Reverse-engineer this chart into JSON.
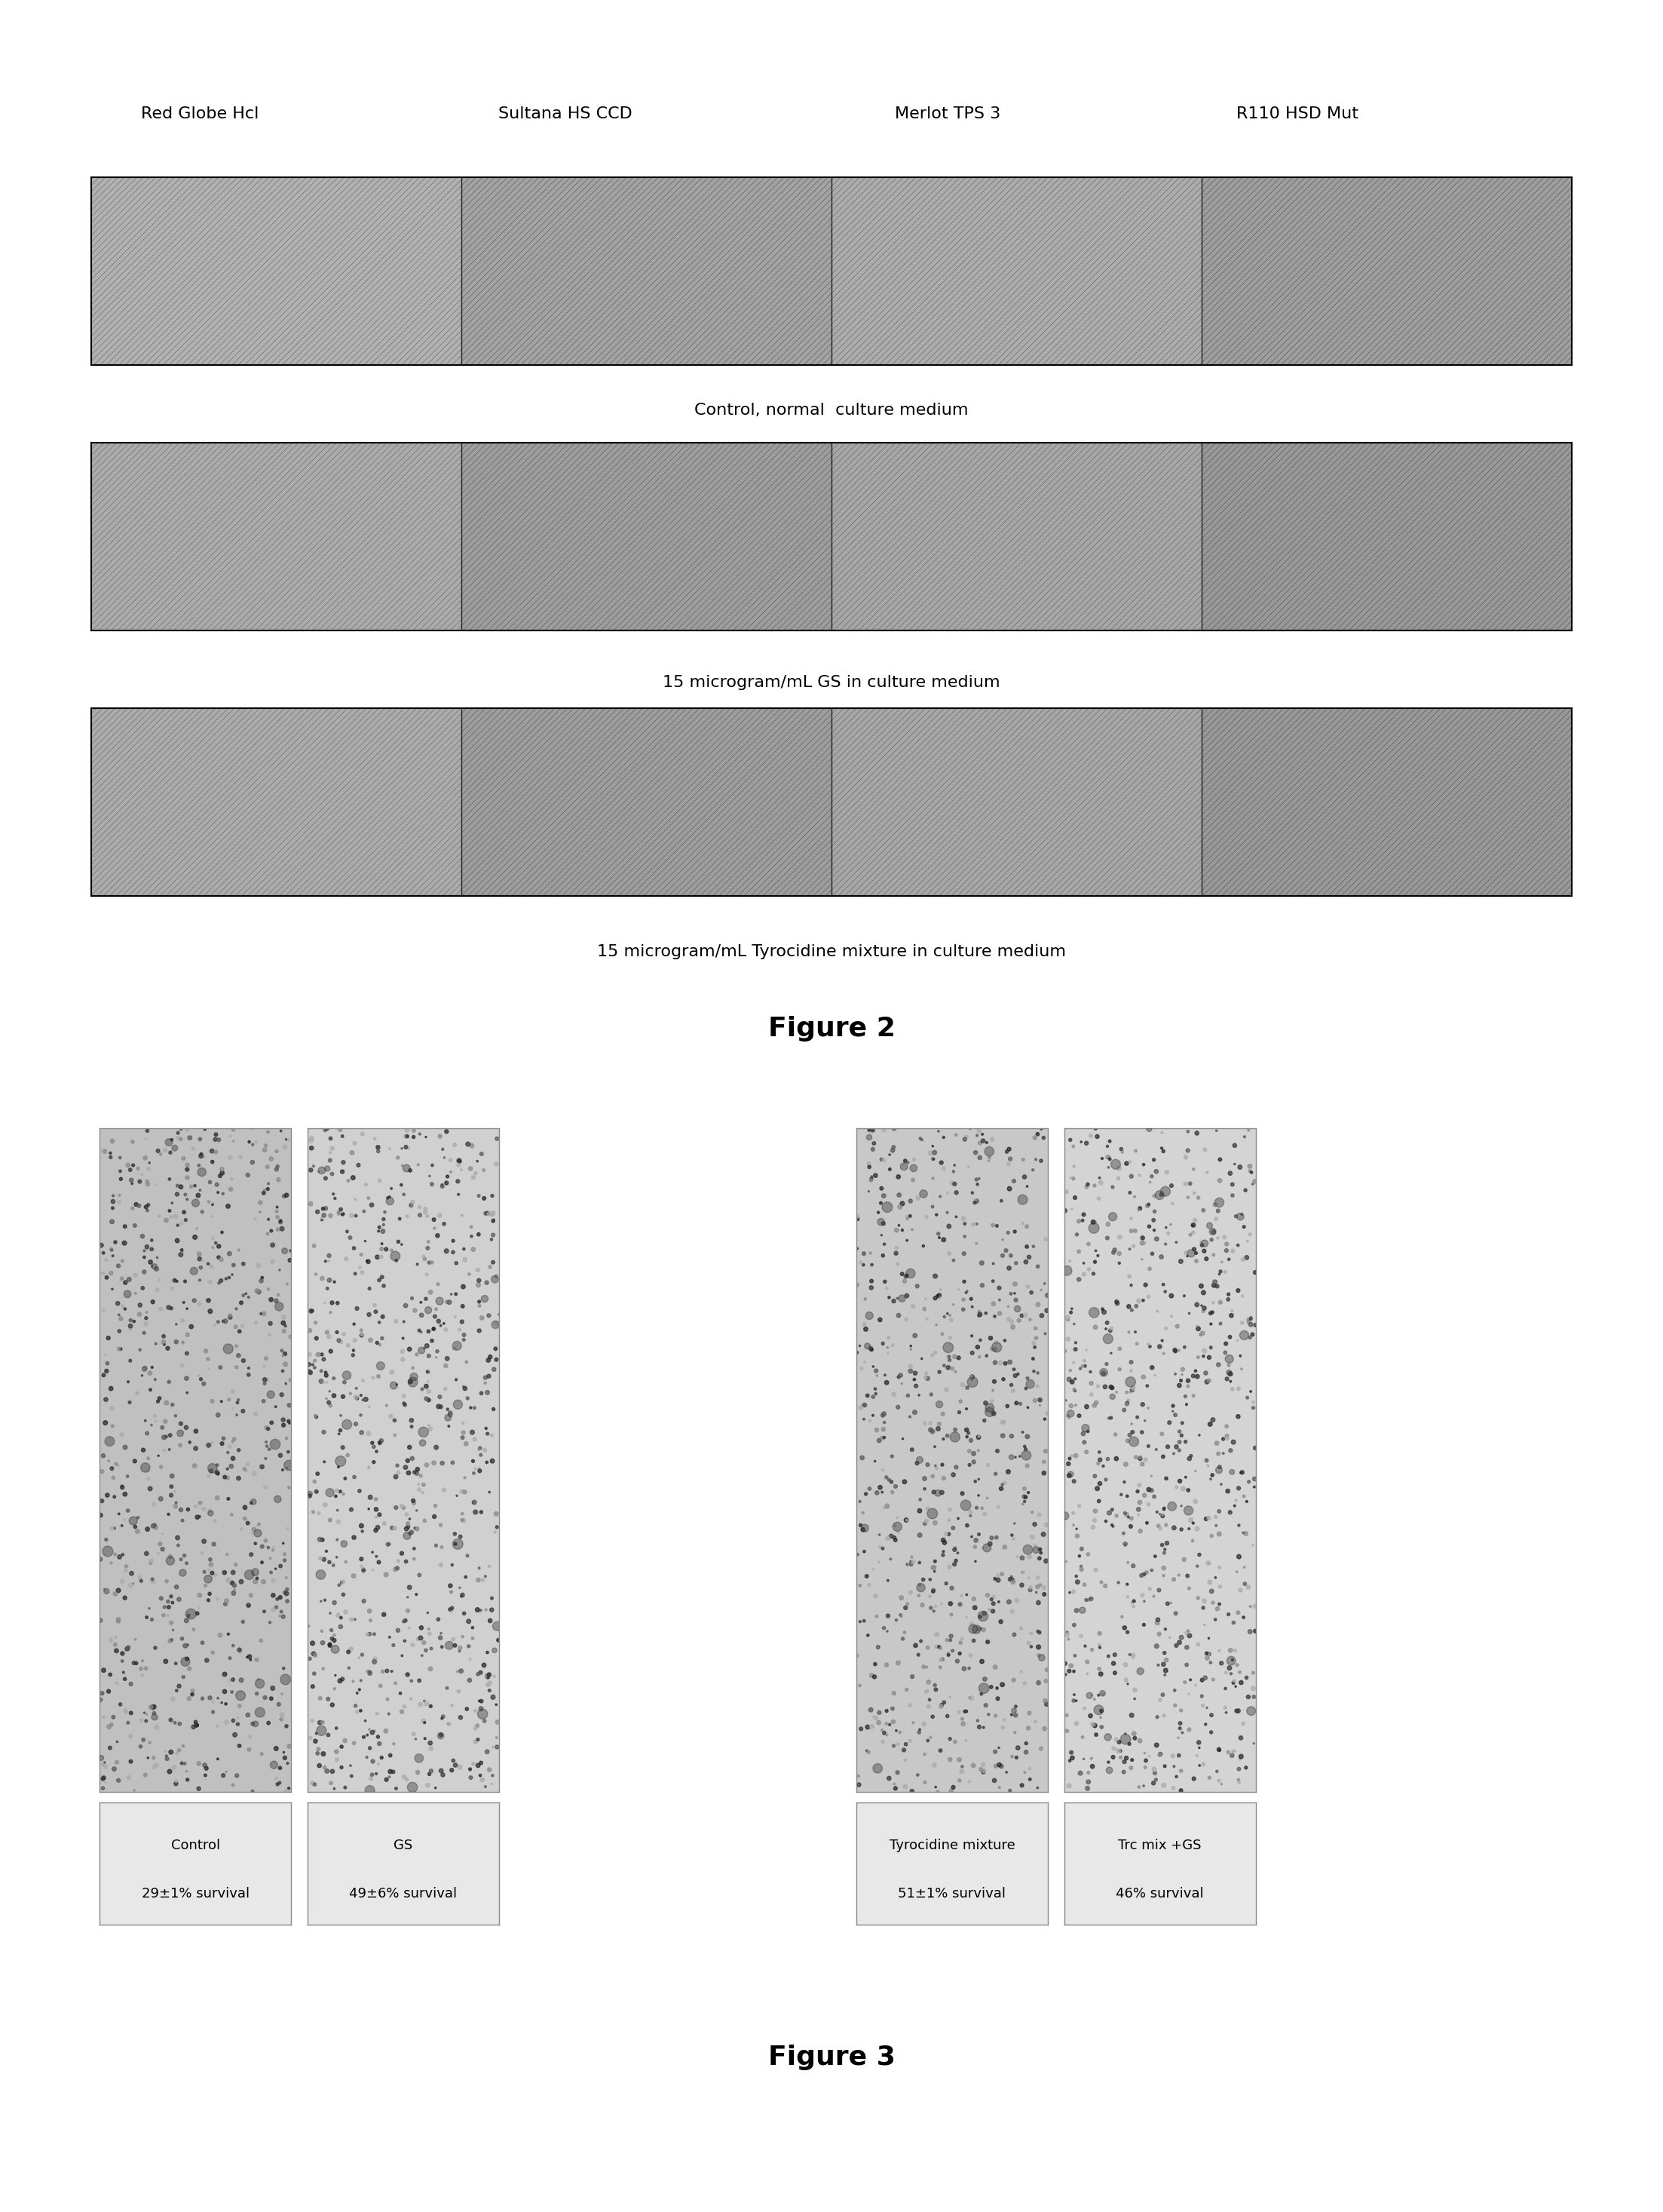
{
  "fig2_col_labels": [
    "Red Globe Hcl",
    "Sultana HS CCD",
    "Merlot TPS 3",
    "R110 HSD Mut"
  ],
  "fig2_row_labels": [
    "Control, normal  culture medium",
    "15 microgram/mL GS in culture medium",
    "15 microgram/mL Tyrocidine mixture in culture medium"
  ],
  "fig2_title": "Figure 2",
  "fig3_title": "Figure 3",
  "fig3_labels": [
    [
      "Control",
      "29±1% survival"
    ],
    [
      "GS",
      "49±6% survival"
    ],
    [
      "Tyrocidine mixture",
      "51±1% survival"
    ],
    [
      "Trc mix +GS",
      "46% survival"
    ]
  ],
  "bg_color": "#ffffff",
  "panel_border_color": "#000000",
  "text_color": "#000000",
  "hatch_pattern": "////",
  "hatch_color_light": "#cccccc",
  "hatch_color_dark": "#888888"
}
